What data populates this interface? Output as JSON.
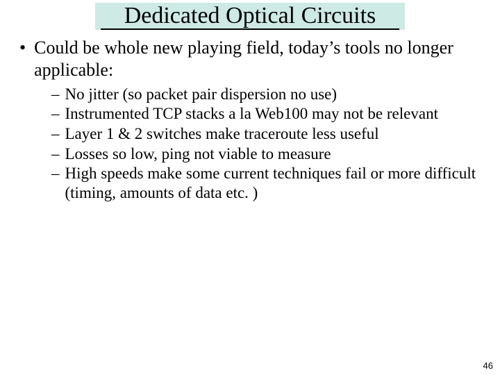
{
  "title": "Dedicated Optical Circuits",
  "colors": {
    "title_bg": "#cdeae4",
    "title_underline": "#000000",
    "text": "#000000",
    "background": "#ffffff"
  },
  "typography": {
    "title_fontsize": 34,
    "level1_fontsize": 26,
    "level2_fontsize": 23,
    "font_family": "Times New Roman"
  },
  "bullets": {
    "level1": [
      "Could be whole new playing field, today’s tools no longer applicable:"
    ],
    "level2": [
      "No jitter (so packet pair dispersion no use)",
      "Instrumented TCP stacks a la Web100 may not be relevant",
      "Layer 1 & 2 switches make traceroute less useful",
      "Losses so low, ping not viable to measure",
      "High speeds make some current techniques fail or more difficult (timing, amounts of data etc. )"
    ]
  },
  "page_number": "46"
}
